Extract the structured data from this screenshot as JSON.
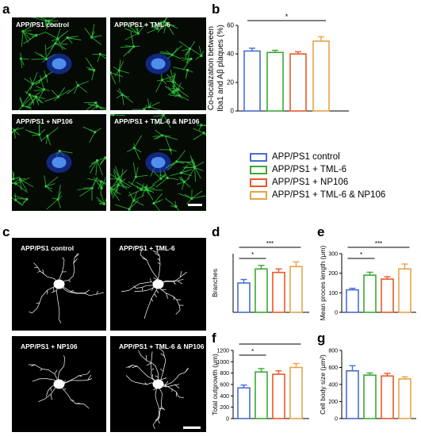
{
  "panels": {
    "a": "a",
    "b": "b",
    "c": "c",
    "d": "d",
    "e": "e",
    "f": "f",
    "g": "g"
  },
  "micro_labels": [
    "APP/PS1 control",
    "APP/PS1 + TML-6",
    "APP/PS1 + NP106",
    "APP/PS1 + TML-6 & NP106"
  ],
  "skel_labels": [
    "APP/PS1 control",
    "APP/PS1 + TML-6",
    "APP/PS1 + NP106",
    "APP/PS1 + TML-6 & NP106"
  ],
  "colors": {
    "control": "#4a6cd4",
    "tml6": "#3aaa35",
    "np106": "#e8582a",
    "combo": "#e6a34a"
  },
  "legend": [
    "APP/PS1 control",
    "APP/PS1 + TML-6",
    "APP/PS1 + NP106",
    "APP/PS1 + TML-6 & NP106"
  ],
  "chart_data": [
    {
      "panel": "b",
      "type": "bar",
      "ylabel": "Co-localization between\nIba1 and Aβ plaques (%)",
      "ylim": [
        0,
        60
      ],
      "yticks": [
        0,
        20,
        40,
        60
      ],
      "values": [
        42,
        41,
        40,
        49
      ],
      "errors": [
        2,
        1.5,
        1.5,
        3
      ],
      "sig": [
        {
          "from": 0,
          "to": 3,
          "label": "*"
        }
      ]
    },
    {
      "panel": "d",
      "type": "bar",
      "ylabel": "Branches",
      "ylim": [
        0,
        50
      ],
      "yticks": [],
      "values": [
        25,
        37,
        34,
        39
      ],
      "errors": [
        3,
        3,
        3,
        4
      ],
      "sig": [
        {
          "from": 0,
          "to": 1,
          "label": "*"
        },
        {
          "from": 0,
          "to": 3,
          "label": "***"
        }
      ]
    },
    {
      "panel": "e",
      "type": "bar",
      "ylabel": "Mean proces length (μm)",
      "ylim": [
        0,
        300
      ],
      "yticks": [
        0,
        100,
        200,
        300
      ],
      "values": [
        115,
        190,
        170,
        222
      ],
      "errors": [
        8,
        15,
        12,
        25
      ],
      "sig": [
        {
          "from": 0,
          "to": 1,
          "label": "*"
        },
        {
          "from": 0,
          "to": 3,
          "label": "***"
        }
      ]
    },
    {
      "panel": "f",
      "type": "bar",
      "ylabel": "Total outgrowth (μm)",
      "ylim": [
        0,
        1200
      ],
      "yticks": [
        0,
        200,
        400,
        600,
        800,
        1000,
        1200
      ],
      "values": [
        540,
        820,
        780,
        900
      ],
      "errors": [
        50,
        60,
        60,
        70
      ],
      "sig": [
        {
          "from": 0,
          "to": 1,
          "label": "*"
        },
        {
          "from": 0,
          "to": 3,
          "label": "**"
        }
      ]
    },
    {
      "panel": "g",
      "type": "bar",
      "ylabel": "Cell body size (μm²)",
      "ylim": [
        0,
        800
      ],
      "yticks": [
        0,
        200,
        400,
        600,
        800
      ],
      "values": [
        560,
        510,
        500,
        465
      ],
      "errors": [
        60,
        25,
        30,
        25
      ],
      "sig": []
    }
  ]
}
